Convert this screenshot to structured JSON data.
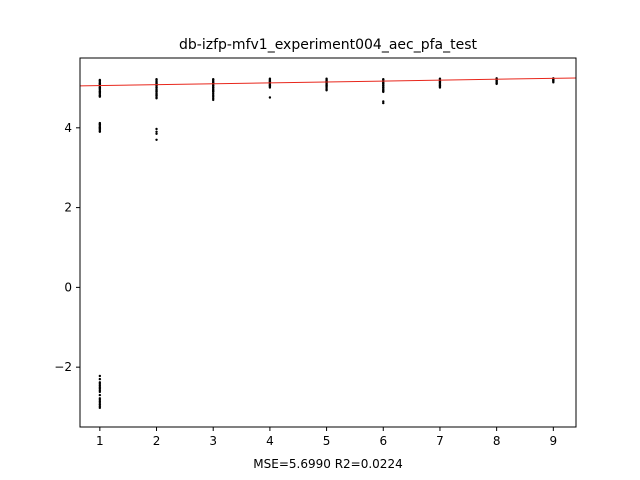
{
  "chart_data": {
    "type": "scatter",
    "title": "db-izfp-mfv1_experiment004_aec_pfa_test",
    "xlabel": "MSE=5.6990 R2=0.0224",
    "ylabel": "",
    "xlim": [
      0.65,
      9.4
    ],
    "ylim": [
      -3.5,
      5.75
    ],
    "xticks": [
      1,
      2,
      3,
      4,
      5,
      6,
      7,
      8,
      9
    ],
    "yticks": [
      -2,
      0,
      2,
      4
    ],
    "ytick_labels": [
      "−2",
      "0",
      "2",
      "4"
    ],
    "grid": false,
    "legend": "none",
    "colors": {
      "points": "#000000",
      "fit_line": "#e8261b",
      "axes": "#000000"
    },
    "series": [
      {
        "kind": "points",
        "groups": [
          {
            "x": 1,
            "y": [
              5.2,
              5.18,
              5.15,
              5.12,
              5.1,
              5.08,
              5.05,
              5.02,
              5.0,
              4.98,
              4.95,
              4.92,
              4.9,
              4.88,
              4.85,
              4.82,
              4.8,
              4.78,
              4.12,
              4.1,
              4.08,
              4.05,
              4.02,
              4.0,
              3.98,
              3.95,
              3.92,
              3.9,
              -2.22,
              -2.3,
              -2.38,
              -2.42,
              -2.46,
              -2.5,
              -2.54,
              -2.58,
              -2.62,
              -2.7,
              -2.78,
              -2.82,
              -2.86,
              -2.9,
              -2.94,
              -2.98,
              -3.02
            ]
          },
          {
            "x": 2,
            "y": [
              5.22,
              5.2,
              5.17,
              5.14,
              5.12,
              5.1,
              5.07,
              5.05,
              5.02,
              5.0,
              4.97,
              4.94,
              4.92,
              4.9,
              4.87,
              4.84,
              4.82,
              4.8,
              4.77,
              4.74,
              3.97,
              3.9,
              3.85,
              3.7
            ]
          },
          {
            "x": 3,
            "y": [
              5.22,
              5.2,
              5.17,
              5.14,
              5.12,
              5.1,
              5.07,
              5.05,
              5.02,
              5.0,
              4.97,
              4.94,
              4.92,
              4.9,
              4.86,
              4.82,
              4.78,
              4.74,
              4.7
            ]
          },
          {
            "x": 4,
            "y": [
              5.23,
              5.21,
              5.19,
              5.17,
              5.15,
              5.13,
              5.11,
              5.09,
              5.07,
              5.05,
              5.03,
              5.01,
              4.76
            ]
          },
          {
            "x": 5,
            "y": [
              5.23,
              5.21,
              5.19,
              5.17,
              5.15,
              5.13,
              5.11,
              5.09,
              5.07,
              5.05,
              5.03,
              5.0,
              4.97,
              4.94
            ]
          },
          {
            "x": 6,
            "y": [
              5.22,
              5.2,
              5.17,
              5.14,
              5.12,
              5.1,
              5.07,
              5.05,
              5.02,
              5.0,
              4.97,
              4.94,
              4.92,
              4.9,
              4.66,
              4.62
            ]
          },
          {
            "x": 7,
            "y": [
              5.23,
              5.21,
              5.19,
              5.17,
              5.15,
              5.13,
              5.11,
              5.09,
              5.07,
              5.05,
              5.03,
              5.01
            ]
          },
          {
            "x": 8,
            "y": [
              5.24,
              5.22,
              5.2,
              5.18,
              5.16,
              5.14,
              5.12,
              5.1
            ]
          },
          {
            "x": 9,
            "y": [
              5.24,
              5.22,
              5.2,
              5.18,
              5.16,
              5.14
            ]
          }
        ]
      },
      {
        "kind": "line",
        "x": [
          0.65,
          9.4
        ],
        "y": [
          5.05,
          5.25
        ]
      }
    ]
  }
}
